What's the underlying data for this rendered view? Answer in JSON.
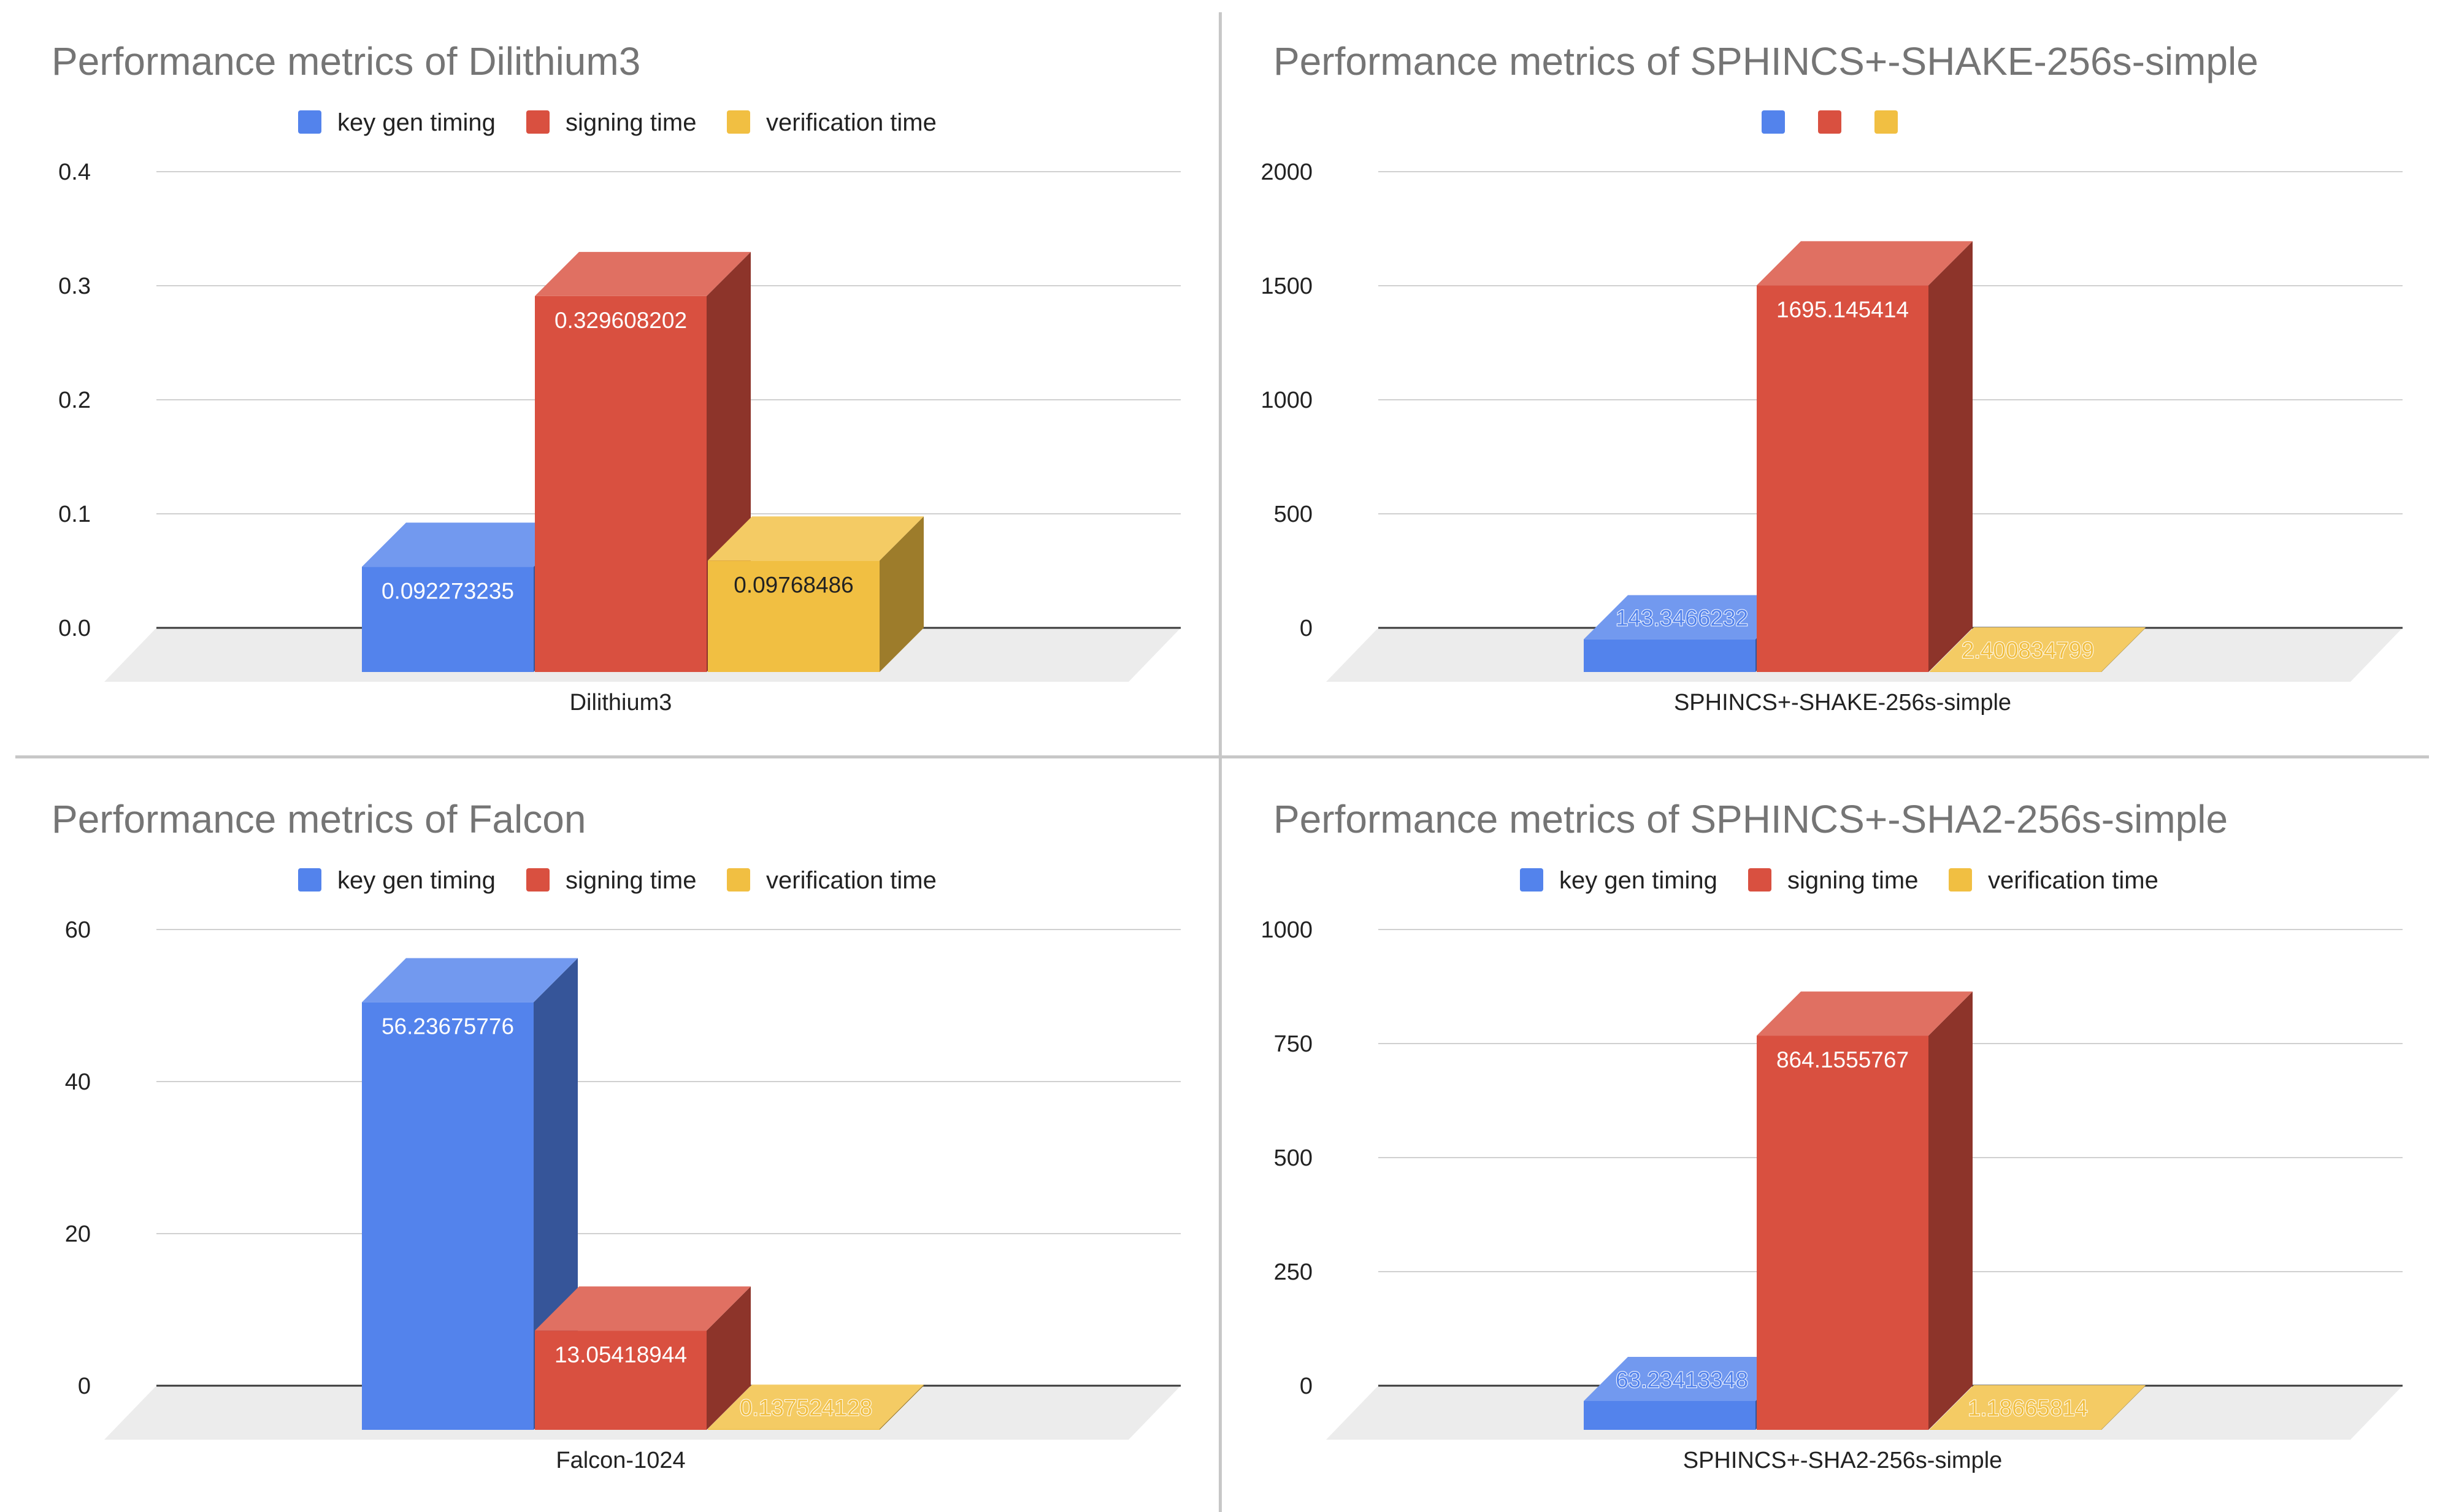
{
  "colors": {
    "key_gen": "#5383ec",
    "signing": "#d95040",
    "verification": "#f1bf42"
  },
  "chart_data": [
    {
      "type": "bar",
      "title": "Performance metrics of Dilithium3",
      "categories": [
        "Dilithium3"
      ],
      "legend": [
        "key gen timing",
        "signing time",
        "verification time"
      ],
      "series": [
        {
          "name": "key gen timing",
          "values": [
            0.092273235
          ],
          "label": "0.092273235"
        },
        {
          "name": "signing time",
          "values": [
            0.329608202
          ],
          "label": "0.329608202"
        },
        {
          "name": "verification time",
          "values": [
            0.09768486
          ],
          "label": "0.09768486"
        }
      ],
      "yticks": [
        "0.0",
        "0.1",
        "0.2",
        "0.3",
        "0.4"
      ],
      "ylim": [
        0,
        0.4
      ]
    },
    {
      "type": "bar",
      "title": "Performance metrics of SPHINCS+-SHAKE-256s-simple",
      "categories": [
        "SPHINCS+-SHAKE-256s-simple"
      ],
      "legend": [
        "",
        "",
        ""
      ],
      "series": [
        {
          "name": "",
          "values": [
            143.3466232
          ],
          "label": "143.3466232"
        },
        {
          "name": "",
          "values": [
            1695.145414
          ],
          "label": "1695.145414"
        },
        {
          "name": "",
          "values": [
            2.400834799
          ],
          "label": "2.400834799"
        }
      ],
      "yticks": [
        "0",
        "500",
        "1000",
        "1500",
        "2000"
      ],
      "ylim": [
        0,
        2000
      ]
    },
    {
      "type": "bar",
      "title": "Performance metrics of Falcon",
      "categories": [
        "Falcon-1024"
      ],
      "legend": [
        "key gen timing",
        "signing time",
        "verification time"
      ],
      "series": [
        {
          "name": "key gen timing",
          "values": [
            56.23675776
          ],
          "label": "56.23675776"
        },
        {
          "name": "signing time",
          "values": [
            13.05418944
          ],
          "label": "13.05418944"
        },
        {
          "name": "verification time",
          "values": [
            0.137524128
          ],
          "label": "0.137524128"
        }
      ],
      "yticks": [
        "0",
        "20",
        "40",
        "60"
      ],
      "ylim": [
        0,
        60
      ]
    },
    {
      "type": "bar",
      "title": "Performance metrics of SPHINCS+-SHA2-256s-simple",
      "categories": [
        "SPHINCS+-SHA2-256s-simple"
      ],
      "legend": [
        "key gen timing",
        "signing time",
        "verification time"
      ],
      "series": [
        {
          "name": "key gen timing",
          "values": [
            63.23413348
          ],
          "label": "63.23413348"
        },
        {
          "name": "signing time",
          "values": [
            864.1555767
          ],
          "label": "864.1555767"
        },
        {
          "name": "verification time",
          "values": [
            1.18665814
          ],
          "label": "1.18665814"
        }
      ],
      "yticks": [
        "0",
        "250",
        "500",
        "750",
        "1000"
      ],
      "ylim": [
        0,
        1000
      ]
    }
  ]
}
